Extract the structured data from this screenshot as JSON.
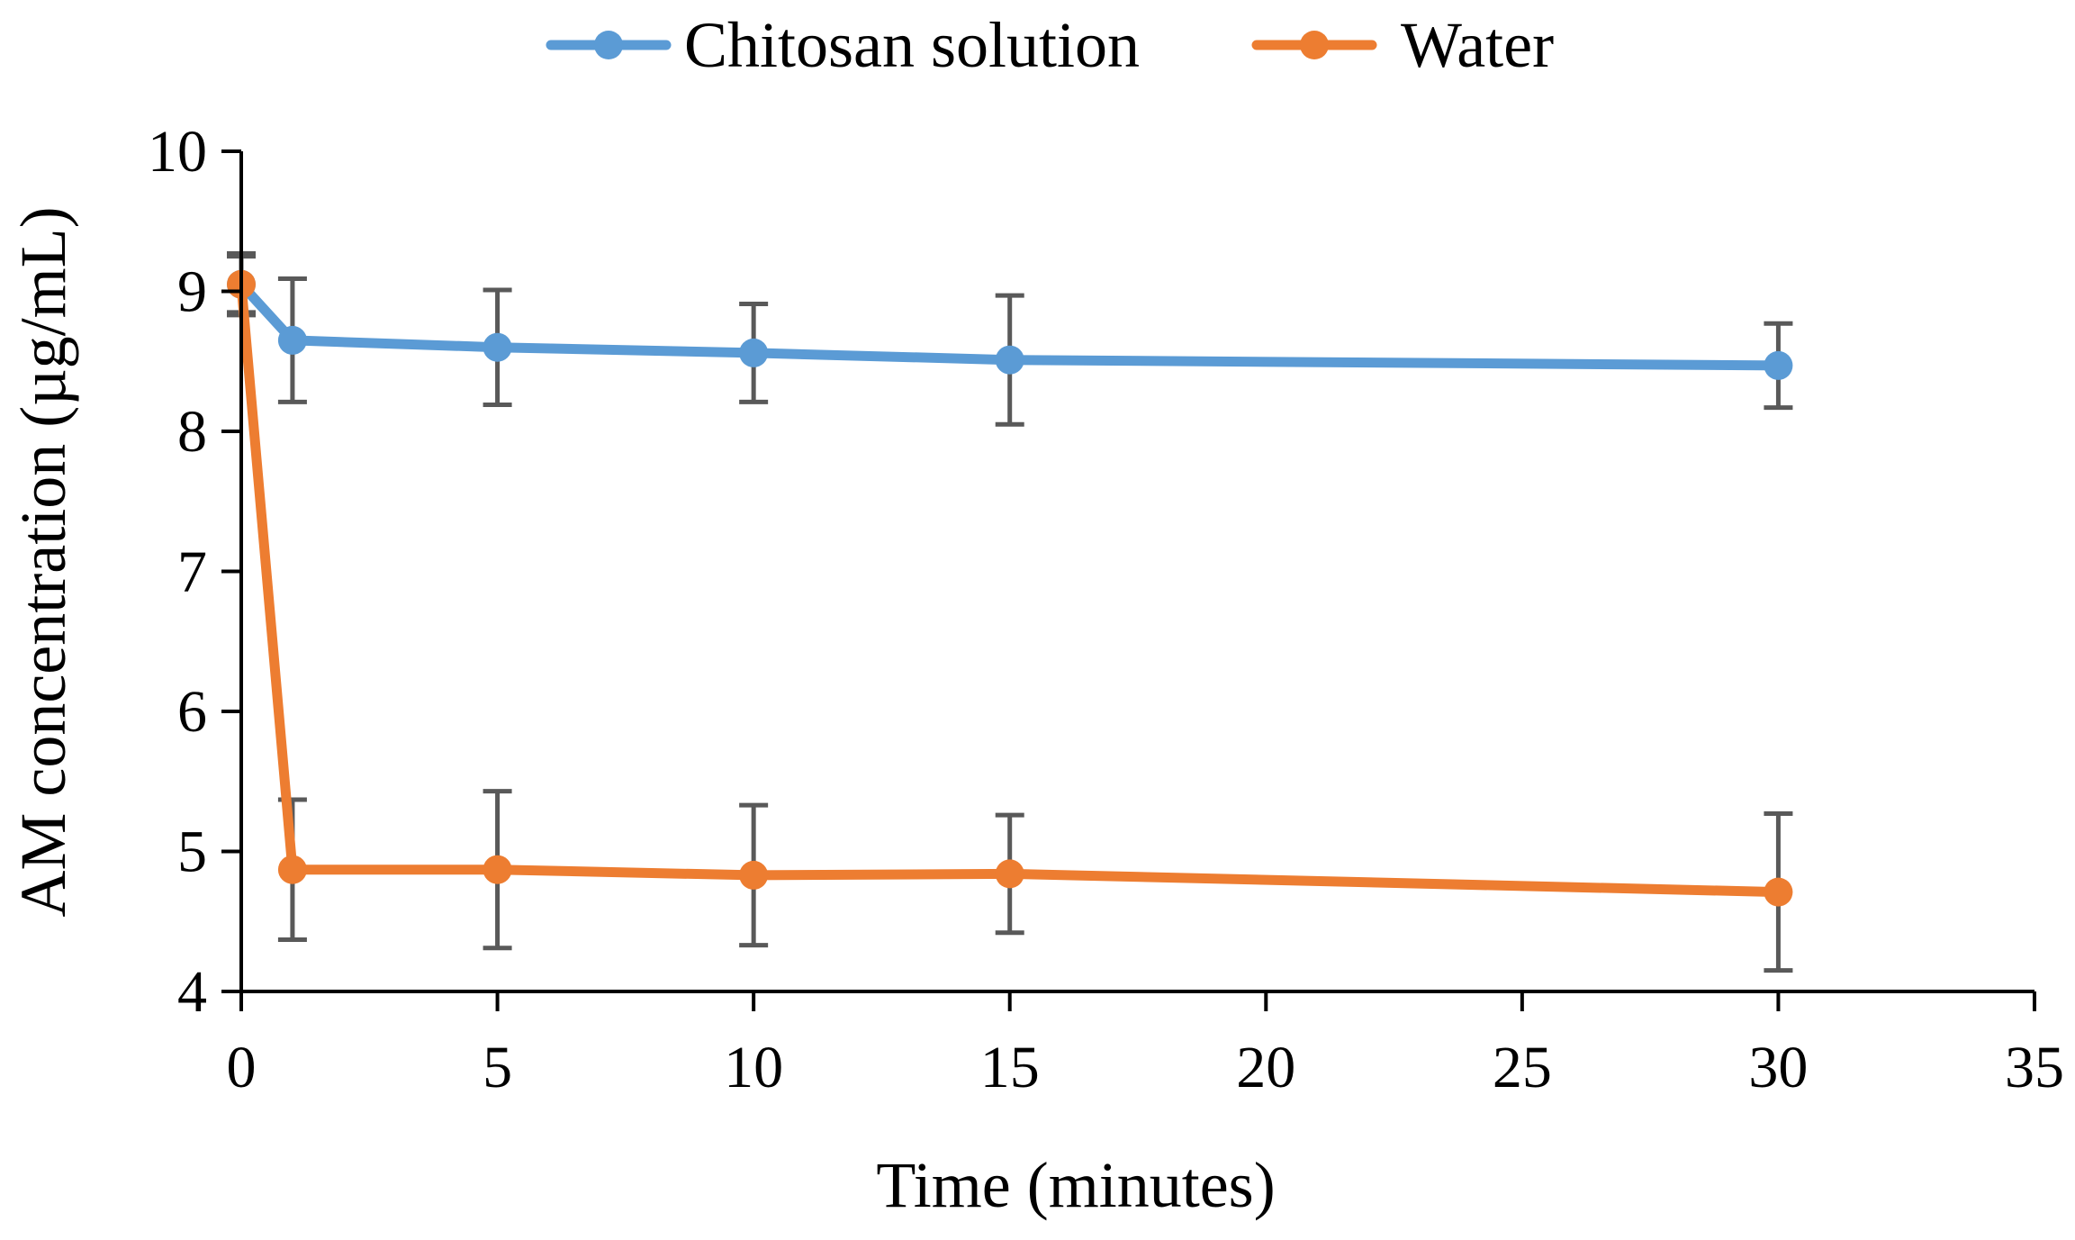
{
  "chart_data": {
    "type": "line",
    "title": "",
    "xlabel": "Time (minutes)",
    "ylabel": "AM concentration (µg/mL)",
    "xlim": [
      0,
      35
    ],
    "ylim": [
      4,
      10
    ],
    "xticks": [
      0,
      5,
      10,
      15,
      20,
      25,
      30,
      35
    ],
    "yticks": [
      4,
      5,
      6,
      7,
      8,
      9,
      10
    ],
    "grid": false,
    "legend_position": "top",
    "series": [
      {
        "name": "Chitosan solution",
        "color": "#5B9BD5",
        "x": [
          0,
          1,
          5,
          10,
          15,
          30
        ],
        "y": [
          9.05,
          8.65,
          8.6,
          8.56,
          8.51,
          8.47
        ],
        "error": [
          0.22,
          0.44,
          0.41,
          0.35,
          0.46,
          0.3
        ]
      },
      {
        "name": "Water",
        "color": "#ED7D31",
        "x": [
          0,
          1,
          5,
          10,
          15,
          30
        ],
        "y": [
          9.05,
          4.87,
          4.87,
          4.83,
          4.84,
          4.71
        ],
        "error": [
          0.2,
          0.5,
          0.56,
          0.5,
          0.42,
          0.56
        ]
      }
    ],
    "error_bar_color": "#595959"
  }
}
